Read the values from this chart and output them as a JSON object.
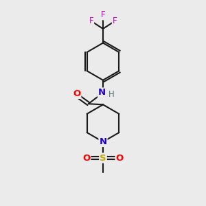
{
  "bg_color": "#ebebeb",
  "bond_color": "#1a1a1a",
  "atom_colors": {
    "O": "#ff0000",
    "N_amide": "#2200cc",
    "N_pip": "#2200cc",
    "S": "#ccaa00",
    "F": "#cc00cc",
    "H": "#557777",
    "C": "#1a1a1a"
  },
  "figsize": [
    3.0,
    3.0
  ],
  "dpi": 100
}
